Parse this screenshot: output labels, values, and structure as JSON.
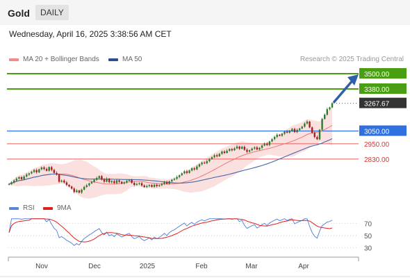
{
  "header": {
    "symbol": "Gold",
    "timeframe": "DAILY"
  },
  "datetime": "Wednesday, April 16, 2025 3:38:56 AM CET",
  "legend": {
    "ma20": "MA 20 + Bollinger Bands",
    "ma50": "MA 50",
    "credit": "Research © 2025 Trading Central"
  },
  "colors": {
    "green": "#4a9e13",
    "blue": "#2f6fe0",
    "red": "#e65a5a",
    "band": "#f9d5d5",
    "ma20": "#ee7777",
    "ma50": "#4466aa",
    "rsi": "#5b86d6",
    "rsi_ma": "#e02020",
    "candle_up": "#2c7a2c",
    "candle_down": "#a01f1f"
  },
  "chart_data": {
    "type": "candlestick",
    "price_axis": {
      "min": 2540,
      "max": 3560
    },
    "levels": [
      {
        "label": "3500.00",
        "value": 3500,
        "kind": "resistance"
      },
      {
        "label": "3380.00",
        "value": 3380,
        "kind": "resistance"
      },
      {
        "label": "3267.67",
        "value": 3267.67,
        "kind": "last"
      },
      {
        "label": "3050.00",
        "value": 3050,
        "kind": "pivot"
      },
      {
        "label": "2950.00",
        "value": 2950,
        "kind": "support"
      },
      {
        "label": "2830.00",
        "value": 2830,
        "kind": "support"
      }
    ],
    "month_labels": [
      "Nov",
      "Dec",
      "2025",
      "Feb",
      "Mar",
      "Apr"
    ],
    "rsi": {
      "legend": "RSI",
      "ma_legend": "9MA",
      "ticks": [
        "70",
        "50",
        "30"
      ],
      "min": 20,
      "max": 80
    },
    "closes": [
      2634,
      2647,
      2661,
      2676,
      2688,
      2672,
      2693,
      2708,
      2717,
      2729,
      2743,
      2726,
      2749,
      2764,
      2752,
      2738,
      2767,
      2744,
      2721,
      2708,
      2652,
      2661,
      2646,
      2627,
      2614,
      2598,
      2571,
      2583,
      2567,
      2590,
      2611,
      2624,
      2639,
      2651,
      2667,
      2681,
      2696,
      2669,
      2652,
      2675,
      2648,
      2657,
      2641,
      2663,
      2651,
      2638,
      2647,
      2659,
      2666,
      2643,
      2627,
      2634,
      2641,
      2622,
      2610,
      2618,
      2626,
      2612,
      2628,
      2617,
      2625,
      2635,
      2649,
      2636,
      2655,
      2667,
      2675,
      2689,
      2703,
      2718,
      2734,
      2721,
      2740,
      2757,
      2748,
      2771,
      2789,
      2802,
      2797,
      2813,
      2831,
      2844,
      2860,
      2852,
      2871,
      2889,
      2878,
      2895,
      2908,
      2899,
      2914,
      2928,
      2911,
      2926,
      2903,
      2887,
      2899,
      2912,
      2921,
      2905,
      2918,
      2936,
      2951,
      2940,
      2968,
      2986,
      3004,
      3021,
      3013,
      3028,
      3045,
      3037,
      3052,
      3066,
      3041,
      3058,
      3070,
      3084,
      3109,
      3124,
      3078,
      3036,
      3003,
      2985,
      3060,
      3145,
      3178,
      3221,
      3235,
      3268
    ]
  }
}
